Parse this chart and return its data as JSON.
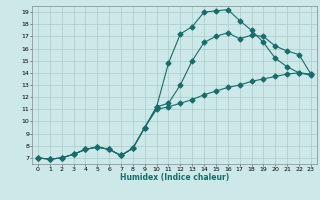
{
  "title": "",
  "xlabel": "Humidex (Indice chaleur)",
  "bg_color": "#cde8e8",
  "grid_color": "#b0d0d0",
  "line_color": "#1a6b6b",
  "xlim": [
    -0.5,
    23.5
  ],
  "ylim": [
    6.5,
    19.5
  ],
  "xticks": [
    0,
    1,
    2,
    3,
    4,
    5,
    6,
    7,
    8,
    9,
    10,
    11,
    12,
    13,
    14,
    15,
    16,
    17,
    18,
    19,
    20,
    21,
    22,
    23
  ],
  "yticks": [
    7,
    8,
    9,
    10,
    11,
    12,
    13,
    14,
    15,
    16,
    17,
    18,
    19
  ],
  "line1_x": [
    0,
    1,
    2,
    3,
    4,
    5,
    6,
    7,
    8,
    9,
    10,
    11,
    12,
    13,
    14,
    15,
    16,
    17,
    18,
    19,
    20,
    21,
    22,
    23
  ],
  "line1_y": [
    7.0,
    6.9,
    7.0,
    7.3,
    7.7,
    7.9,
    7.7,
    7.2,
    7.8,
    9.5,
    11.2,
    14.8,
    17.2,
    17.8,
    19.0,
    19.1,
    19.2,
    18.3,
    17.5,
    16.5,
    15.2,
    14.5,
    14.0,
    13.8
  ],
  "line2_x": [
    0,
    1,
    2,
    3,
    4,
    5,
    6,
    7,
    8,
    9,
    10,
    11,
    12,
    13,
    14,
    15,
    16,
    17,
    18,
    19,
    20,
    21,
    22,
    23
  ],
  "line2_y": [
    7.0,
    6.9,
    7.0,
    7.3,
    7.7,
    7.9,
    7.7,
    7.2,
    7.8,
    9.5,
    11.2,
    11.5,
    13.0,
    15.0,
    16.5,
    17.0,
    17.3,
    16.8,
    17.1,
    17.0,
    16.2,
    15.8,
    15.5,
    13.9
  ],
  "line3_x": [
    0,
    1,
    2,
    3,
    4,
    5,
    6,
    7,
    8,
    9,
    10,
    11,
    12,
    13,
    14,
    15,
    16,
    17,
    18,
    19,
    20,
    21,
    22,
    23
  ],
  "line3_y": [
    7.0,
    6.9,
    7.0,
    7.3,
    7.7,
    7.9,
    7.7,
    7.2,
    7.8,
    9.5,
    11.0,
    11.2,
    11.5,
    11.8,
    12.2,
    12.5,
    12.8,
    13.0,
    13.3,
    13.5,
    13.7,
    13.9,
    14.0,
    13.9
  ]
}
